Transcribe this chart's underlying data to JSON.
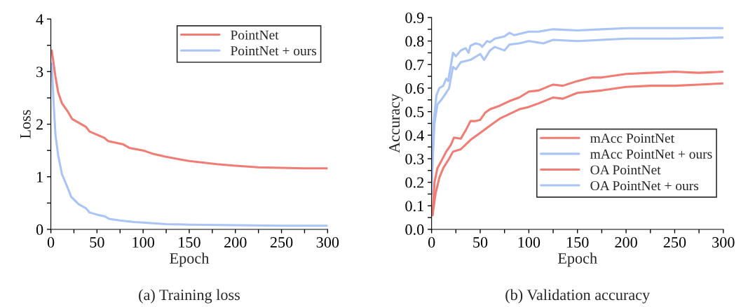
{
  "chart_data": [
    {
      "type": "line",
      "title": "(a) Training loss",
      "xlabel": "Epoch",
      "ylabel": "Loss",
      "xlim": [
        0,
        300
      ],
      "xticks": [
        0,
        50,
        100,
        150,
        200,
        250,
        300
      ],
      "ylim": [
        0,
        4
      ],
      "yticks": [
        0,
        1,
        2,
        3,
        4
      ],
      "legend": "top right",
      "line_style": "solid",
      "series": [
        {
          "name": "PointNet",
          "color": "#f07c74",
          "x": [
            1,
            5,
            8,
            12,
            18,
            23,
            30,
            38,
            42,
            50,
            58,
            62,
            70,
            78,
            85,
            100,
            110,
            125,
            140,
            150,
            165,
            180,
            200,
            225,
            250,
            275,
            300
          ],
          "values": [
            3.4,
            2.9,
            2.6,
            2.4,
            2.25,
            2.1,
            2.03,
            1.95,
            1.86,
            1.8,
            1.74,
            1.68,
            1.65,
            1.62,
            1.55,
            1.5,
            1.44,
            1.38,
            1.33,
            1.3,
            1.27,
            1.24,
            1.21,
            1.18,
            1.17,
            1.16,
            1.16
          ]
        },
        {
          "name": "PointNet + ours",
          "color": "#a9c4f5",
          "x": [
            1,
            3,
            5,
            8,
            12,
            18,
            22,
            30,
            38,
            42,
            50,
            58,
            63,
            75,
            90,
            100,
            125,
            150,
            200,
            250,
            300
          ],
          "values": [
            3.15,
            2.4,
            1.8,
            1.4,
            1.05,
            0.8,
            0.62,
            0.48,
            0.4,
            0.32,
            0.28,
            0.25,
            0.2,
            0.17,
            0.14,
            0.13,
            0.1,
            0.09,
            0.08,
            0.07,
            0.07
          ]
        }
      ]
    },
    {
      "type": "line",
      "title": "(b) Validation accuracy",
      "xlabel": "Epoch",
      "ylabel": "Accuracy",
      "xlim": [
        0,
        300
      ],
      "xticks": [
        0,
        50,
        100,
        150,
        200,
        250,
        300
      ],
      "ylim": [
        0,
        0.9
      ],
      "yticks": [
        {
          "value": 0,
          "label": "0.0"
        },
        0.1,
        0.2,
        0.3,
        0.4,
        0.5,
        0.6,
        0.7,
        0.8,
        0.9
      ],
      "legend": "bottom right",
      "line_style": "solid",
      "series": [
        {
          "name": "mAcc PointNet",
          "color": "#f07c74",
          "x": [
            1,
            4,
            8,
            12,
            18,
            22,
            30,
            40,
            50,
            60,
            70,
            80,
            90,
            100,
            110,
            125,
            135,
            150,
            175,
            200,
            225,
            250,
            275,
            300
          ],
          "values": [
            0.06,
            0.15,
            0.22,
            0.26,
            0.3,
            0.33,
            0.34,
            0.38,
            0.41,
            0.44,
            0.47,
            0.49,
            0.51,
            0.52,
            0.535,
            0.56,
            0.555,
            0.58,
            0.59,
            0.605,
            0.61,
            0.61,
            0.615,
            0.62
          ]
        },
        {
          "name": "mAcc PointNet + ours",
          "color": "#a9c4f5",
          "x": [
            0,
            3,
            6,
            10,
            15,
            18,
            22,
            25,
            30,
            40,
            50,
            54,
            60,
            65,
            75,
            80,
            90,
            100,
            115,
            125,
            150,
            175,
            200,
            250,
            300
          ],
          "values": [
            0.2,
            0.45,
            0.53,
            0.55,
            0.58,
            0.6,
            0.69,
            0.68,
            0.71,
            0.72,
            0.745,
            0.72,
            0.76,
            0.775,
            0.76,
            0.785,
            0.79,
            0.8,
            0.79,
            0.805,
            0.8,
            0.805,
            0.81,
            0.81,
            0.815
          ]
        },
        {
          "name": "OA PointNet",
          "color": "#f07c74",
          "x": [
            1,
            3,
            6,
            10,
            15,
            20,
            23,
            30,
            35,
            40,
            45,
            50,
            55,
            60,
            70,
            80,
            90,
            100,
            110,
            125,
            135,
            150,
            165,
            175,
            200,
            225,
            250,
            275,
            300
          ],
          "values": [
            0.06,
            0.2,
            0.26,
            0.29,
            0.33,
            0.36,
            0.39,
            0.385,
            0.42,
            0.46,
            0.46,
            0.465,
            0.495,
            0.51,
            0.525,
            0.545,
            0.56,
            0.585,
            0.59,
            0.615,
            0.61,
            0.63,
            0.645,
            0.645,
            0.66,
            0.665,
            0.67,
            0.665,
            0.67
          ]
        },
        {
          "name": "OA PointNet + ours",
          "color": "#a9c4f5",
          "x": [
            0,
            2,
            5,
            8,
            12,
            15,
            17,
            20,
            22,
            25,
            30,
            35,
            38,
            40,
            45,
            50,
            52,
            57,
            60,
            65,
            75,
            80,
            85,
            100,
            110,
            125,
            150,
            175,
            200,
            250,
            300
          ],
          "values": [
            0.15,
            0.45,
            0.57,
            0.6,
            0.61,
            0.64,
            0.63,
            0.7,
            0.75,
            0.735,
            0.76,
            0.77,
            0.75,
            0.78,
            0.79,
            0.785,
            0.775,
            0.8,
            0.795,
            0.81,
            0.82,
            0.835,
            0.825,
            0.84,
            0.84,
            0.85,
            0.845,
            0.85,
            0.855,
            0.855,
            0.855
          ]
        }
      ]
    }
  ]
}
